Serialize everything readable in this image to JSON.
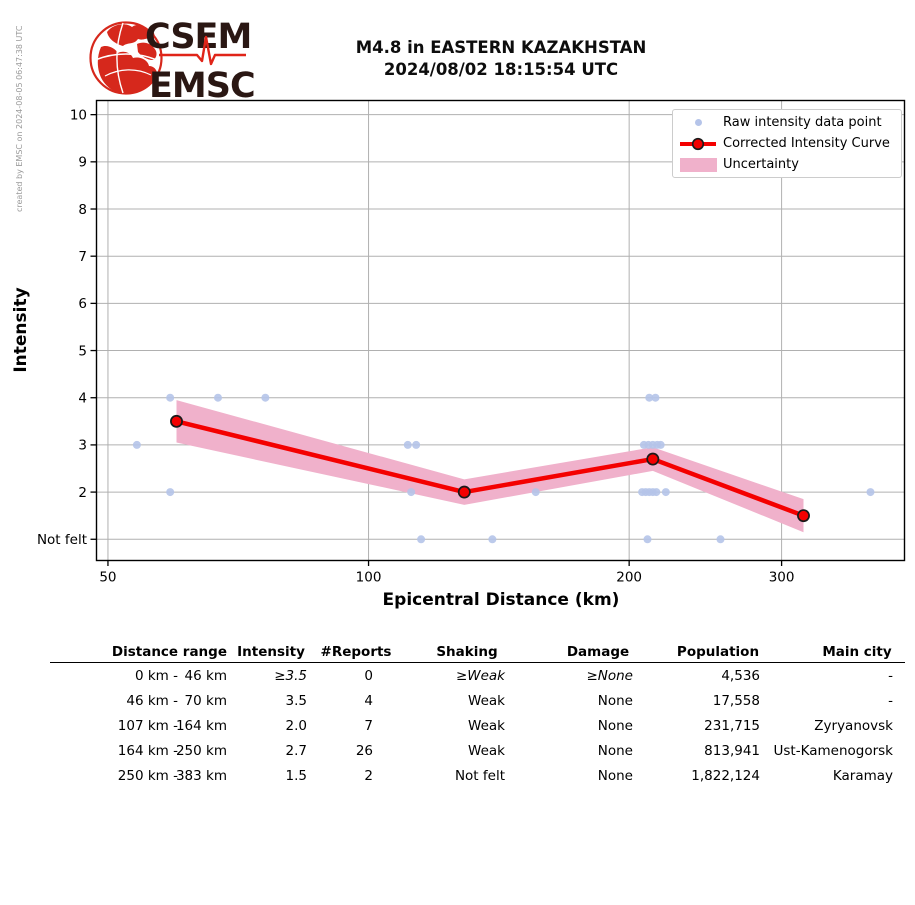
{
  "created_by": "created by EMSC on 2024-08-05 06:47:38 UTC",
  "logo": {
    "icon": "globe-seismogram-icon",
    "line1": "CSEM",
    "line2": "EMSC",
    "brand_red": "#d6281c",
    "brand_dark": "#2a1713"
  },
  "title": {
    "line1": "M4.8 in EASTERN KAZAKHSTAN",
    "line2": "2024/08/02 18:15:54 UTC"
  },
  "legend": {
    "items": [
      {
        "icon": "raw-point-icon",
        "label": "Raw intensity data point"
      },
      {
        "icon": "corrected-curve-icon",
        "label": "Corrected Intensity Curve"
      },
      {
        "icon": "uncertainty-band-icon",
        "label": "Uncertainty"
      }
    ]
  },
  "chart_data": {
    "type": "line",
    "x_scale": "log",
    "xlabel": "Epicentral Distance (km)",
    "ylabel": "Intensity",
    "xlim": [
      48.5,
      416
    ],
    "ylim": [
      0.55,
      10.3
    ],
    "x_ticks": [
      50,
      100,
      200,
      300
    ],
    "y_ticks": [
      {
        "value": 10,
        "label": "10"
      },
      {
        "value": 9,
        "label": "9"
      },
      {
        "value": 8,
        "label": "8"
      },
      {
        "value": 7,
        "label": "7"
      },
      {
        "value": 6,
        "label": "6"
      },
      {
        "value": 5,
        "label": "5"
      },
      {
        "value": 4,
        "label": "4"
      },
      {
        "value": 3,
        "label": "3"
      },
      {
        "value": 2,
        "label": "2"
      },
      {
        "value": 1,
        "label": "Not felt"
      }
    ],
    "grid": true,
    "legend_position": "upper right",
    "colors": {
      "raw": "#b5c4e9",
      "curve": "#f40000",
      "marker_edge": "#1a1a1a",
      "band": "#f0b1cb",
      "grid": "#b0b0b0",
      "spine": "#000000"
    },
    "series": [
      {
        "name": "Raw intensity data point",
        "type": "scatter",
        "points": [
          [
            59,
            4
          ],
          [
            67,
            4
          ],
          [
            76,
            4
          ],
          [
            211,
            4
          ],
          [
            214.5,
            4
          ],
          [
            54,
            3
          ],
          [
            111,
            3
          ],
          [
            113.5,
            3
          ],
          [
            208,
            3
          ],
          [
            210.5,
            3
          ],
          [
            213,
            3
          ],
          [
            215.5,
            3
          ],
          [
            217.5,
            3
          ],
          [
            59,
            2
          ],
          [
            112,
            2
          ],
          [
            156,
            2
          ],
          [
            207,
            2
          ],
          [
            209,
            2
          ],
          [
            211,
            2
          ],
          [
            213,
            2
          ],
          [
            215,
            2
          ],
          [
            220.5,
            2
          ],
          [
            380,
            2
          ],
          [
            115,
            1
          ],
          [
            139,
            1
          ],
          [
            210,
            1
          ],
          [
            255,
            1
          ]
        ]
      },
      {
        "name": "Corrected Intensity Curve",
        "type": "line",
        "points": [
          [
            60,
            3.5
          ],
          [
            129,
            2.0
          ],
          [
            213,
            2.7
          ],
          [
            318,
            1.5
          ]
        ]
      },
      {
        "name": "Uncertainty",
        "type": "band",
        "upper": [
          [
            60,
            3.95
          ],
          [
            129,
            2.27
          ],
          [
            213,
            2.95
          ],
          [
            318,
            1.85
          ]
        ],
        "lower": [
          [
            60,
            3.05
          ],
          [
            129,
            1.73
          ],
          [
            213,
            2.45
          ],
          [
            318,
            1.15
          ]
        ]
      }
    ]
  },
  "table": {
    "headers": [
      "Distance range",
      "Intensity",
      "#Reports",
      "Shaking",
      "Damage",
      "Population",
      "Main city"
    ],
    "rows": [
      {
        "range_from": "0 km -",
        "range_to": "46 km",
        "intensity": "≥3.5",
        "reports": "0",
        "shaking": "≥Weak",
        "damage": "≥None",
        "population": "4,536",
        "main_city": "-",
        "estimated": true
      },
      {
        "range_from": "46 km -",
        "range_to": "70 km",
        "intensity": "3.5",
        "reports": "4",
        "shaking": "Weak",
        "damage": "None",
        "population": "17,558",
        "main_city": "-",
        "estimated": false
      },
      {
        "range_from": "107 km -",
        "range_to": "164 km",
        "intensity": "2.0",
        "reports": "7",
        "shaking": "Weak",
        "damage": "None",
        "population": "231,715",
        "main_city": "Zyryanovsk",
        "estimated": false
      },
      {
        "range_from": "164 km -",
        "range_to": "250 km",
        "intensity": "2.7",
        "reports": "26",
        "shaking": "Weak",
        "damage": "None",
        "population": "813,941",
        "main_city": "Ust-Kamenogorsk",
        "estimated": false
      },
      {
        "range_from": "250 km -",
        "range_to": "383 km",
        "intensity": "1.5",
        "reports": "2",
        "shaking": "Not felt",
        "damage": "None",
        "population": "1,822,124",
        "main_city": "Karamay",
        "estimated": false
      }
    ]
  }
}
